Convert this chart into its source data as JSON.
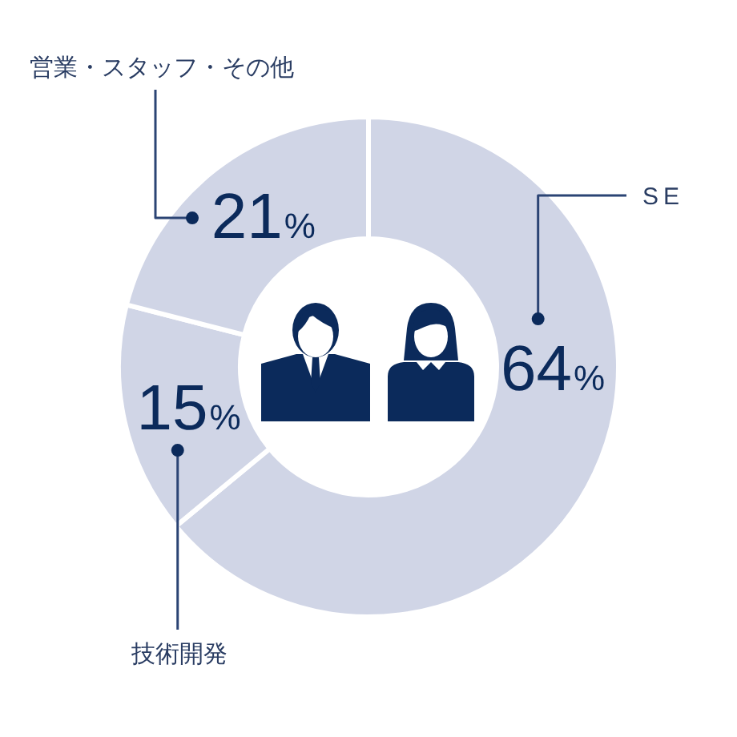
{
  "chart_data": {
    "type": "donut",
    "categories": [
      "SE",
      "技術開発",
      "営業・スタッフ・その他"
    ],
    "values": [
      64,
      15,
      21
    ],
    "colors": [
      "#d0d5e6",
      "#d0d5e6",
      "#d0d5e6"
    ],
    "value_labels": [
      "64%",
      "15%",
      "21%"
    ]
  }
}
